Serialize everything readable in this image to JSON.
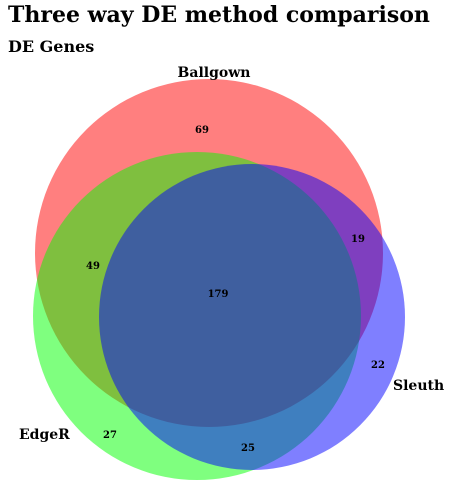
{
  "title": "Three way DE method comparison",
  "subtitle": "DE Genes",
  "sets": [
    {
      "name": "Ballgown",
      "color": "#ff0000"
    },
    {
      "name": "EdgeR",
      "color": "#00ff00"
    },
    {
      "name": "Sleuth",
      "color": "#0000ff"
    }
  ],
  "regions": {
    "ballgown_only": "69",
    "ballgown_sleuth": "19",
    "ballgown_edger": "49",
    "all_three": "179",
    "sleuth_only": "22",
    "edger_only": "27",
    "edger_sleuth": "25"
  }
}
